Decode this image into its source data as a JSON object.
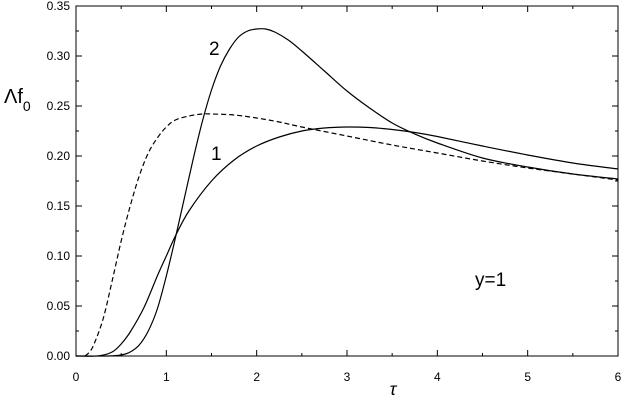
{
  "chart_data": {
    "type": "line",
    "xlabel": "τ",
    "ylabel": {
      "main": "Λf",
      "sub": "0"
    },
    "xlim": [
      0,
      6
    ],
    "ylim": [
      0,
      0.35
    ],
    "x_ticks": [
      "0",
      "1",
      "2",
      "3",
      "4",
      "5",
      "6"
    ],
    "y_ticks": [
      "0.00",
      "0.05",
      "0.10",
      "0.15",
      "0.20",
      "0.25",
      "0.30",
      "0.35"
    ],
    "grid": false,
    "annotations": {
      "curve1": "1",
      "curve2": "2",
      "param": "y=1"
    },
    "series": [
      {
        "name": "1",
        "style": "solid",
        "color": "#000000",
        "points": [
          [
            0,
            0
          ],
          [
            0.25,
            0.0002
          ],
          [
            0.4,
            0.004
          ],
          [
            0.5,
            0.012
          ],
          [
            0.6,
            0.024
          ],
          [
            0.75,
            0.048
          ],
          [
            0.9,
            0.08
          ],
          [
            1.0,
            0.1
          ],
          [
            1.1,
            0.12
          ],
          [
            1.25,
            0.145
          ],
          [
            1.5,
            0.175
          ],
          [
            1.75,
            0.196
          ],
          [
            2.0,
            0.21
          ],
          [
            2.25,
            0.219
          ],
          [
            2.5,
            0.225
          ],
          [
            2.75,
            0.228
          ],
          [
            3.0,
            0.229
          ],
          [
            3.25,
            0.2285
          ],
          [
            3.5,
            0.2265
          ],
          [
            3.75,
            0.2235
          ],
          [
            4.0,
            0.2195
          ],
          [
            4.5,
            0.21
          ],
          [
            5.0,
            0.201
          ],
          [
            5.5,
            0.193
          ],
          [
            6.0,
            0.187
          ]
        ]
      },
      {
        "name": "2",
        "style": "solid",
        "color": "#000000",
        "points": [
          [
            0,
            0
          ],
          [
            0.35,
            0
          ],
          [
            0.5,
            0.001
          ],
          [
            0.6,
            0.004
          ],
          [
            0.7,
            0.011
          ],
          [
            0.8,
            0.025
          ],
          [
            0.9,
            0.047
          ],
          [
            1.0,
            0.08
          ],
          [
            1.1,
            0.118
          ],
          [
            1.2,
            0.158
          ],
          [
            1.3,
            0.198
          ],
          [
            1.4,
            0.235
          ],
          [
            1.5,
            0.266
          ],
          [
            1.6,
            0.29
          ],
          [
            1.7,
            0.307
          ],
          [
            1.8,
            0.319
          ],
          [
            1.9,
            0.325
          ],
          [
            2.0,
            0.327
          ],
          [
            2.1,
            0.327
          ],
          [
            2.2,
            0.324
          ],
          [
            2.35,
            0.316
          ],
          [
            2.5,
            0.305
          ],
          [
            2.75,
            0.285
          ],
          [
            3.0,
            0.265
          ],
          [
            3.25,
            0.248
          ],
          [
            3.5,
            0.233
          ],
          [
            3.75,
            0.222
          ],
          [
            4.0,
            0.213
          ],
          [
            4.5,
            0.198
          ],
          [
            5.0,
            0.189
          ],
          [
            5.5,
            0.182
          ],
          [
            6.0,
            0.177
          ]
        ]
      },
      {
        "name": "dashed",
        "style": "dashed",
        "color": "#000000",
        "points": [
          [
            0.1,
            0
          ],
          [
            0.15,
            0.004
          ],
          [
            0.2,
            0.012
          ],
          [
            0.3,
            0.037
          ],
          [
            0.4,
            0.075
          ],
          [
            0.5,
            0.115
          ],
          [
            0.6,
            0.15
          ],
          [
            0.7,
            0.18
          ],
          [
            0.8,
            0.203
          ],
          [
            0.9,
            0.218
          ],
          [
            1.0,
            0.229
          ],
          [
            1.1,
            0.236
          ],
          [
            1.25,
            0.24
          ],
          [
            1.4,
            0.242
          ],
          [
            1.5,
            0.242
          ],
          [
            1.75,
            0.241
          ],
          [
            2.0,
            0.238
          ],
          [
            2.25,
            0.234
          ],
          [
            2.5,
            0.229
          ],
          [
            3.0,
            0.22
          ],
          [
            3.5,
            0.211
          ],
          [
            4.0,
            0.203
          ],
          [
            4.5,
            0.195
          ],
          [
            5.0,
            0.188
          ],
          [
            5.5,
            0.182
          ],
          [
            6.0,
            0.176
          ]
        ]
      }
    ]
  }
}
